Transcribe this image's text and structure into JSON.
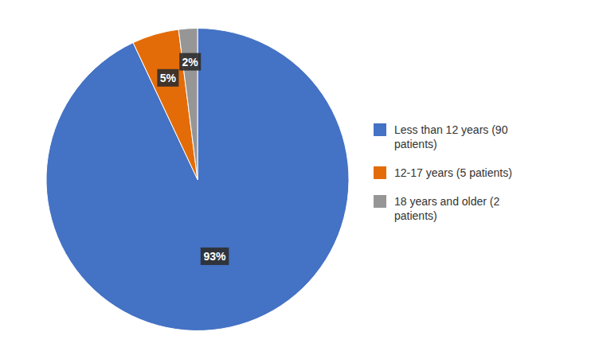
{
  "chart_data": {
    "type": "pie",
    "categories": [
      "Less than 12 years (90\n  patients)",
      "12-17 years (5 patients)",
      "18 years and older (2\n  patients)"
    ],
    "values": [
      93,
      5,
      2
    ],
    "value_labels": [
      "93%",
      "5%",
      "2%"
    ],
    "colors": [
      "#4472C4",
      "#E36C09",
      "#969696"
    ],
    "data_labels": true,
    "legend": "right"
  }
}
